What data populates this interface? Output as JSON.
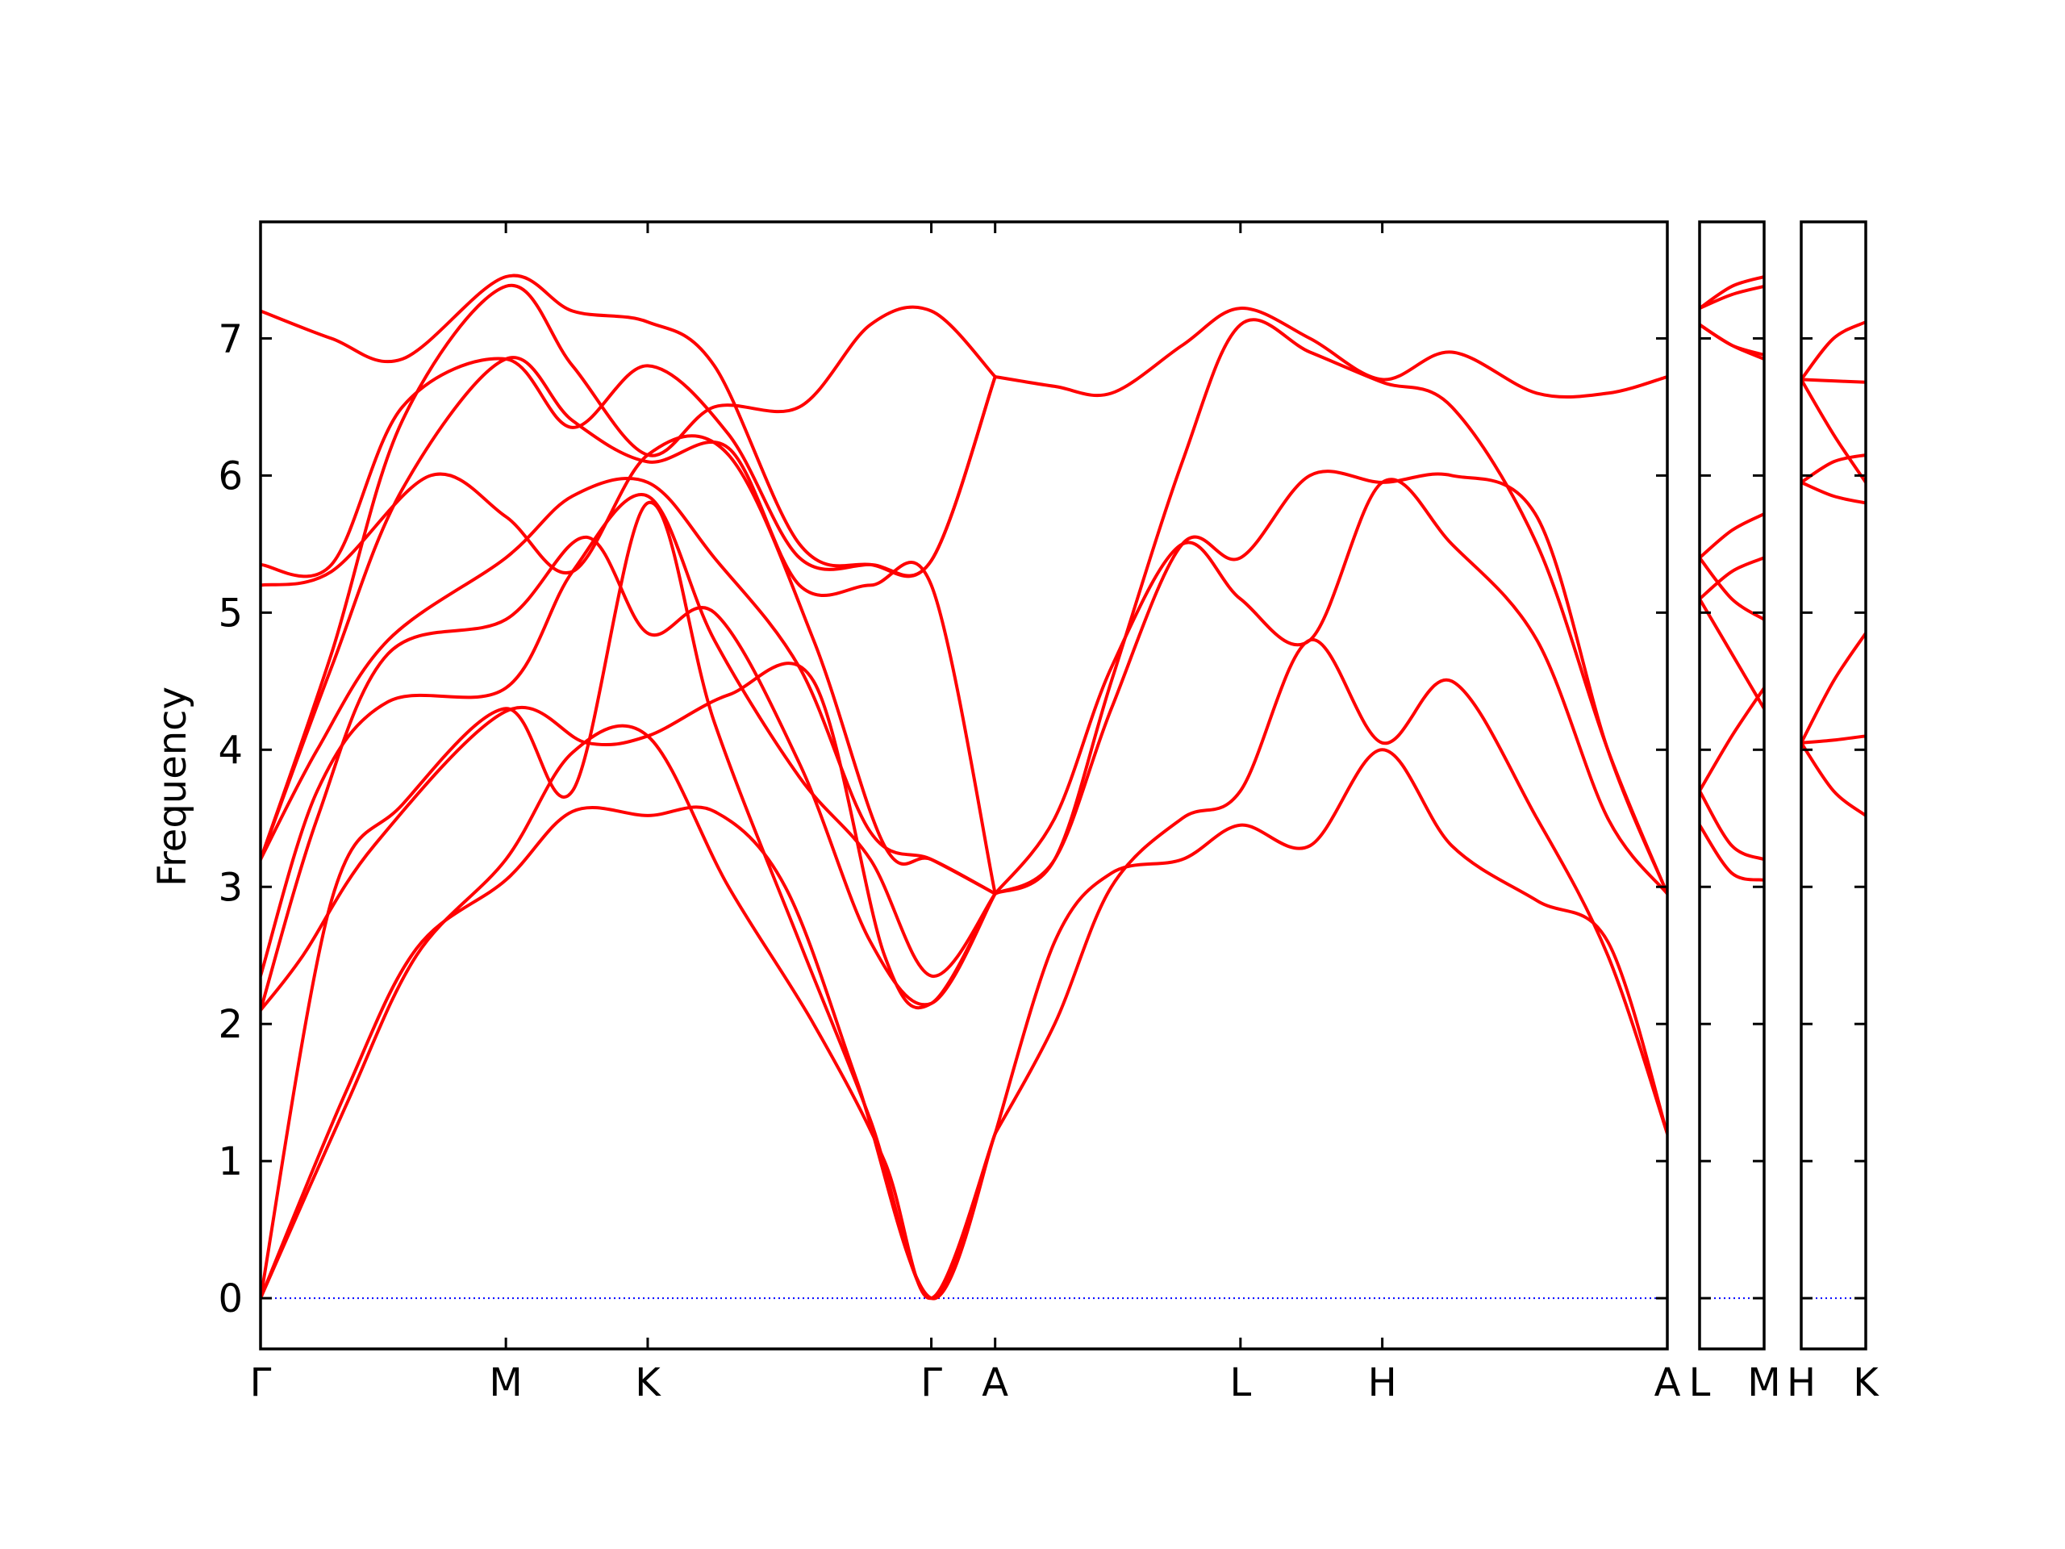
{
  "chart_data": {
    "type": "line",
    "title": "",
    "ylabel": "Frequency",
    "xlabel": "",
    "ylim": [
      -0.37,
      7.85
    ],
    "yticks": [
      0,
      1,
      2,
      3,
      4,
      5,
      6,
      7
    ],
    "grid": false,
    "legend": "none",
    "colors": {
      "band": "#ff0000",
      "zero_line": "#0000ff"
    },
    "panels": [
      {
        "xlim": [
          0,
          9.92
        ],
        "ticks": [
          {
            "x": 0,
            "label": "Γ"
          },
          {
            "x": 1.73,
            "label": "M"
          },
          {
            "x": 2.73,
            "label": "K"
          },
          {
            "x": 4.73,
            "label": "Γ"
          },
          {
            "x": 5.18,
            "label": "A"
          },
          {
            "x": 6.91,
            "label": "L"
          },
          {
            "x": 7.91,
            "label": "H"
          },
          {
            "x": 9.92,
            "label": "A"
          }
        ],
        "series": [
          {
            "x": [
              0,
              0.6,
              1.1,
              1.73,
              2.2,
              2.73,
              3.2,
              3.7,
              4.2,
              4.73,
              5.18
            ],
            "values": [
              0,
              1.5,
              2.55,
              3.05,
              3.55,
              3.52,
              3.55,
              3.0,
              1.6,
              0,
              1.2
            ]
          },
          {
            "x": [
              0,
              0.6,
              1.1,
              1.73,
              2.2,
              2.73,
              3.3,
              3.9,
              4.4,
              4.73,
              5.18
            ],
            "values": [
              0,
              1.4,
              2.5,
              3.2,
              3.98,
              4.1,
              3.0,
              2.0,
              1.0,
              0,
              1.2
            ]
          },
          {
            "x": [
              0,
              0.5,
              1.0,
              1.73,
              2.2,
              2.73,
              3.2,
              3.8,
              4.3,
              4.73,
              5.18
            ],
            "values": [
              0,
              2.9,
              3.6,
              4.3,
              3.7,
              5.8,
              4.2,
              2.6,
              1.3,
              0,
              1.2
            ]
          },
          {
            "x": [
              0,
              0.3,
              0.8,
              1.73,
              2.3,
              2.73,
              3.3,
              3.9,
              4.4,
              4.73,
              5.18
            ],
            "values": [
              2.1,
              2.5,
              3.3,
              4.28,
              4.05,
              4.1,
              4.4,
              4.5,
              2.5,
              2.15,
              2.95
            ]
          },
          {
            "x": [
              0,
              0.4,
              0.9,
              1.73,
              2.2,
              2.73,
              3.2,
              3.8,
              4.3,
              4.73,
              5.18
            ],
            "values": [
              2.35,
              3.7,
              4.35,
              4.45,
              5.3,
              5.85,
              4.8,
              3.8,
              3.2,
              2.35,
              2.95
            ]
          },
          {
            "x": [
              0,
              0.4,
              0.9,
              1.73,
              2.3,
              2.73,
              3.2,
              3.8,
              4.3,
              4.73,
              5.18
            ],
            "values": [
              2.1,
              3.5,
              4.7,
              4.95,
              5.55,
              4.85,
              5.0,
              3.9,
              2.6,
              2.15,
              2.95
            ]
          },
          {
            "x": [
              0,
              0.4,
              0.9,
              1.73,
              2.2,
              2.73,
              3.2,
              3.8,
              4.3,
              4.73,
              5.18
            ],
            "values": [
              3.2,
              4.0,
              4.8,
              5.4,
              5.85,
              5.95,
              5.4,
              4.6,
              3.4,
              3.2,
              2.95
            ]
          },
          {
            "x": [
              0,
              0.5,
              1.2,
              1.73,
              2.2,
              2.73,
              3.3,
              3.9,
              4.4,
              4.73,
              5.18
            ],
            "values": [
              5.2,
              5.3,
              6.0,
              5.7,
              5.3,
              6.15,
              6.15,
              4.8,
              3.3,
              3.2,
              2.95
            ]
          },
          {
            "x": [
              0,
              0.5,
              1.0,
              1.73,
              2.2,
              2.73,
              3.3,
              3.8,
              4.3,
              4.73,
              5.18
            ],
            "values": [
              3.2,
              4.6,
              5.9,
              6.85,
              6.4,
              6.1,
              6.2,
              5.2,
              5.2,
              5.2,
              2.95
            ]
          },
          {
            "x": [
              0,
              0.5,
              1.0,
              1.73,
              2.2,
              2.73,
              3.3,
              3.8,
              4.3,
              4.73,
              5.18
            ],
            "values": [
              5.35,
              5.35,
              6.5,
              6.85,
              6.35,
              6.8,
              6.3,
              5.4,
              5.35,
              5.38,
              6.72
            ]
          },
          {
            "x": [
              0,
              0.5,
              1.0,
              1.73,
              2.2,
              2.73,
              3.2,
              3.8,
              4.3,
              4.73,
              5.18
            ],
            "values": [
              3.2,
              4.7,
              6.4,
              7.38,
              6.8,
              6.15,
              6.5,
              6.5,
              7.1,
              7.2,
              6.72
            ]
          },
          {
            "x": [
              0,
              0.5,
              1.0,
              1.73,
              2.2,
              2.73,
              3.2,
              3.8,
              4.3,
              4.73,
              5.18
            ],
            "values": [
              7.2,
              7.0,
              6.85,
              7.45,
              7.2,
              7.12,
              6.8,
              5.5,
              5.35,
              5.38,
              6.72
            ]
          },
          {
            "x": [
              5.18,
              5.6,
              6.0,
              6.5,
              6.91,
              7.4,
              7.91,
              8.4,
              9.0,
              9.5,
              9.92
            ],
            "values": [
              1.2,
              2.6,
              3.1,
              3.2,
              3.45,
              3.3,
              4.0,
              3.3,
              2.9,
              2.6,
              1.2
            ]
          },
          {
            "x": [
              5.18,
              5.6,
              6.0,
              6.5,
              6.91,
              7.4,
              7.91,
              8.4,
              9.0,
              9.5,
              9.92
            ],
            "values": [
              1.2,
              2.0,
              3.0,
              3.5,
              3.7,
              4.8,
              4.05,
              4.5,
              3.5,
              2.5,
              1.2
            ]
          },
          {
            "x": [
              5.18,
              5.6,
              6.0,
              6.5,
              6.91,
              7.4,
              7.91,
              8.4,
              9.0,
              9.5,
              9.92
            ],
            "values": [
              2.95,
              3.5,
              4.6,
              5.5,
              5.1,
              4.8,
              5.95,
              5.5,
              4.8,
              3.5,
              2.95
            ]
          },
          {
            "x": [
              5.18,
              5.6,
              6.0,
              6.5,
              6.91,
              7.4,
              7.91,
              8.4,
              9.0,
              9.5,
              9.92
            ],
            "values": [
              2.95,
              3.2,
              4.3,
              5.5,
              5.4,
              6.0,
              5.95,
              6.0,
              5.7,
              4.0,
              2.95
            ]
          },
          {
            "x": [
              5.18,
              5.6,
              6.0,
              6.5,
              6.91,
              7.4,
              7.91,
              8.4,
              9.0,
              9.5,
              9.92
            ],
            "values": [
              2.95,
              3.2,
              4.5,
              6.1,
              7.1,
              6.9,
              6.68,
              6.5,
              5.5,
              4.0,
              2.95
            ]
          },
          {
            "x": [
              5.18,
              5.6,
              6.0,
              6.5,
              6.91,
              7.4,
              7.91,
              8.4,
              9.0,
              9.5,
              9.92
            ],
            "values": [
              6.72,
              6.65,
              6.6,
              6.95,
              7.22,
              7.0,
              6.7,
              6.9,
              6.6,
              6.6,
              6.72
            ]
          }
        ]
      },
      {
        "xlim": [
          0,
          1
        ],
        "ticks": [
          {
            "x": 0,
            "label": "L"
          },
          {
            "x": 1,
            "label": "M"
          }
        ],
        "series": [
          {
            "x": [
              0,
              0.5,
              1
            ],
            "values": [
              3.45,
              3.1,
              3.05
            ]
          },
          {
            "x": [
              0,
              0.5,
              1
            ],
            "values": [
              3.7,
              3.3,
              3.2
            ]
          },
          {
            "x": [
              0,
              0.5,
              1
            ],
            "values": [
              3.7,
              4.1,
              4.45
            ]
          },
          {
            "x": [
              0,
              0.5,
              1
            ],
            "values": [
              5.1,
              4.7,
              4.3
            ]
          },
          {
            "x": [
              0,
              0.5,
              1
            ],
            "values": [
              5.4,
              5.1,
              4.95
            ]
          },
          {
            "x": [
              0,
              0.5,
              1
            ],
            "values": [
              5.1,
              5.3,
              5.4
            ]
          },
          {
            "x": [
              0,
              0.5,
              1
            ],
            "values": [
              5.4,
              5.6,
              5.72
            ]
          },
          {
            "x": [
              0,
              0.5,
              1
            ],
            "values": [
              7.1,
              6.95,
              6.85
            ]
          },
          {
            "x": [
              0,
              0.5,
              1
            ],
            "values": [
              7.1,
              6.95,
              6.88
            ]
          },
          {
            "x": [
              0,
              0.5,
              1
            ],
            "values": [
              7.22,
              7.32,
              7.38
            ]
          },
          {
            "x": [
              0,
              0.5,
              1
            ],
            "values": [
              7.22,
              7.38,
              7.45
            ]
          }
        ]
      },
      {
        "xlim": [
          0,
          1
        ],
        "ticks": [
          {
            "x": 0,
            "label": "H"
          },
          {
            "x": 1,
            "label": "K"
          }
        ],
        "series": [
          {
            "x": [
              0,
              0.5,
              1
            ],
            "values": [
              4.05,
              3.7,
              3.52
            ]
          },
          {
            "x": [
              0,
              0.5,
              1
            ],
            "values": [
              4.05,
              4.07,
              4.1
            ]
          },
          {
            "x": [
              0,
              0.5,
              1
            ],
            "values": [
              4.05,
              4.5,
              4.85
            ]
          },
          {
            "x": [
              0,
              0.5,
              1
            ],
            "values": [
              5.95,
              5.85,
              5.8
            ]
          },
          {
            "x": [
              0,
              0.5,
              1
            ],
            "values": [
              5.95,
              6.1,
              6.15
            ]
          },
          {
            "x": [
              0,
              0.5,
              1
            ],
            "values": [
              6.7,
              6.3,
              5.95
            ]
          },
          {
            "x": [
              0,
              0.5,
              1
            ],
            "values": [
              6.7,
              6.69,
              6.68
            ]
          },
          {
            "x": [
              0,
              0.5,
              1
            ],
            "values": [
              6.7,
              7.0,
              7.12
            ]
          }
        ]
      }
    ]
  }
}
